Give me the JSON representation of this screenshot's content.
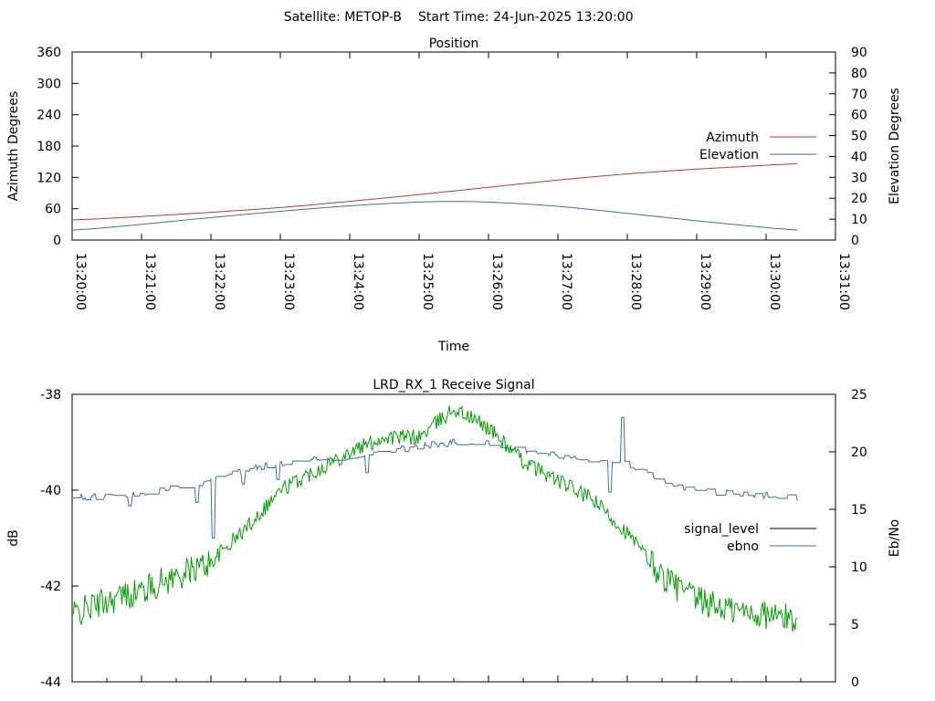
{
  "header": {
    "satellite_label": "Satellite: METOP-B",
    "start_time_label": "Start Time: 24-Jun-2025 13:20:00"
  },
  "colors": {
    "azimuth": "#b03a3a",
    "elevation": "#3a6ea5",
    "signal_level": "#00a000",
    "ebno": "#3a6ea5",
    "legend_signal_level": "#000000"
  },
  "chart_data": [
    {
      "type": "line",
      "title": "Position",
      "xlabel": "Time",
      "ylabel": "Azimuth Degrees",
      "y2label": "Elevation Degrees",
      "x_ticks": [
        "13:20:00",
        "13:21:00",
        "13:22:00",
        "13:23:00",
        "13:24:00",
        "13:25:00",
        "13:26:00",
        "13:27:00",
        "13:28:00",
        "13:29:00",
        "13:30:00",
        "13:31:00"
      ],
      "y_ticks": [
        0,
        60,
        120,
        180,
        240,
        300,
        360
      ],
      "y2_ticks": [
        0,
        10,
        20,
        30,
        40,
        50,
        60,
        70,
        80,
        90
      ],
      "ylim": [
        0,
        360
      ],
      "y2lim": [
        0,
        90
      ],
      "xlim": [
        "13:20:00",
        "13:31:00"
      ],
      "legend_position": "right",
      "series": [
        {
          "name": "Azimuth",
          "axis": "left",
          "x": [
            "13:20:00",
            "13:21:00",
            "13:22:00",
            "13:23:00",
            "13:24:00",
            "13:25:00",
            "13:26:00",
            "13:27:00",
            "13:28:00",
            "13:29:00",
            "13:30:00",
            "13:30:27"
          ],
          "y": [
            38,
            45,
            53,
            62,
            74,
            87,
            101,
            115,
            127,
            136,
            143,
            147
          ]
        },
        {
          "name": "Elevation",
          "axis": "right",
          "x": [
            "13:20:00",
            "13:21:00",
            "13:22:00",
            "13:23:00",
            "13:24:00",
            "13:25:00",
            "13:25:30",
            "13:26:00",
            "13:27:00",
            "13:28:00",
            "13:29:00",
            "13:30:00",
            "13:30:27"
          ],
          "y": [
            4.5,
            7.5,
            10.8,
            13.8,
            16.5,
            18.3,
            18.6,
            18.3,
            16.3,
            12.8,
            9.2,
            6.0,
            4.5
          ]
        }
      ]
    },
    {
      "type": "line",
      "title": "LRD_RX_1 Receive Signal",
      "ylabel": "dB",
      "y2label": "Eb/No",
      "y_ticks": [
        -38,
        -40,
        -42,
        -44
      ],
      "y2_ticks": [
        0,
        5,
        10,
        15,
        20,
        25
      ],
      "ylim": [
        -44,
        -38
      ],
      "y2lim": [
        0,
        25
      ],
      "xlim": [
        "13:20:00",
        "13:31:00"
      ],
      "legend_position": "right",
      "series": [
        {
          "name": "signal_level",
          "axis": "left",
          "noise": 0.14,
          "x": [
            "13:20:00",
            "13:20:30",
            "13:21:00",
            "13:21:30",
            "13:22:00",
            "13:22:30",
            "13:23:00",
            "13:23:30",
            "13:24:00",
            "13:24:30",
            "13:25:00",
            "13:25:30",
            "13:26:00",
            "13:26:30",
            "13:27:00",
            "13:27:30",
            "13:28:00",
            "13:28:30",
            "13:29:00",
            "13:29:30",
            "13:30:00",
            "13:30:27"
          ],
          "y": [
            -42.6,
            -42.3,
            -42.1,
            -41.8,
            -41.5,
            -40.8,
            -40.0,
            -39.6,
            -39.2,
            -38.9,
            -38.9,
            -38.3,
            -38.7,
            -39.4,
            -39.8,
            -40.2,
            -40.9,
            -41.8,
            -42.3,
            -42.5,
            -42.6,
            -42.7
          ]
        },
        {
          "name": "ebno",
          "axis": "right",
          "noise": 0.15,
          "x": [
            "13:20:00",
            "13:20:30",
            "13:21:00",
            "13:21:30",
            "13:22:00",
            "13:22:30",
            "13:23:00",
            "13:23:30",
            "13:24:00",
            "13:24:30",
            "13:25:00",
            "13:25:30",
            "13:26:00",
            "13:26:30",
            "13:27:00",
            "13:27:30",
            "13:28:00",
            "13:28:30",
            "13:29:00",
            "13:29:30",
            "13:30:00",
            "13:30:27"
          ],
          "y": [
            16.0,
            16.2,
            16.4,
            16.8,
            17.5,
            18.4,
            19.0,
            19.3,
            19.6,
            20.0,
            20.5,
            20.8,
            20.7,
            20.2,
            19.6,
            19.3,
            19.0,
            17.6,
            16.6,
            16.4,
            16.2,
            16.0
          ],
          "dips": [
            [
              "13:20:50",
              15.3
            ],
            [
              "13:21:48",
              15.6
            ],
            [
              "13:22:02",
              12.5
            ],
            [
              "13:22:28",
              17.2
            ],
            [
              "13:22:58",
              17.6
            ],
            [
              "13:24:15",
              18.2
            ],
            [
              "13:27:45",
              16.5
            ]
          ],
          "spikes": [
            [
              "13:27:56",
              23.0
            ]
          ]
        }
      ]
    }
  ]
}
